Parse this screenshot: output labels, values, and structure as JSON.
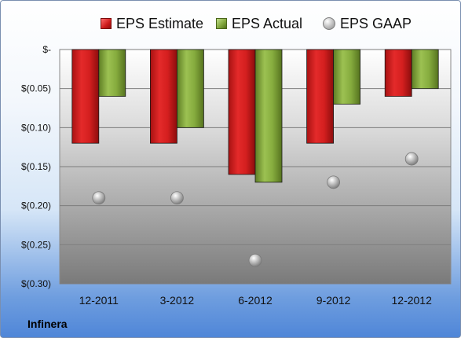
{
  "company": "Infinera",
  "legend": {
    "estimate": "EPS Estimate",
    "actual": "EPS Actual",
    "gaap": "EPS GAAP"
  },
  "colors": {
    "estimate": "#d42020",
    "actual": "#86ac3e",
    "gaap": "#b5b5b5"
  },
  "chart_data": {
    "type": "bar",
    "categories": [
      "12-2011",
      "3-2012",
      "6-2012",
      "9-2012",
      "12-2012"
    ],
    "series": [
      {
        "name": "EPS Estimate",
        "type": "bar",
        "values": [
          -0.12,
          -0.12,
          -0.16,
          -0.12,
          -0.06
        ]
      },
      {
        "name": "EPS Actual",
        "type": "bar",
        "values": [
          -0.06,
          -0.1,
          -0.17,
          -0.07,
          -0.05
        ]
      },
      {
        "name": "EPS GAAP",
        "type": "scatter",
        "values": [
          -0.19,
          -0.19,
          -0.27,
          -0.17,
          -0.14
        ]
      }
    ],
    "ylim": [
      -0.3,
      0
    ],
    "yticks": [
      0,
      -0.05,
      -0.1,
      -0.15,
      -0.2,
      -0.25,
      -0.3
    ],
    "ytick_labels": [
      "$-",
      "$(0.05)",
      "$(0.10)",
      "$(0.15)",
      "$(0.20)",
      "$(0.25)",
      "$(0.30)"
    ],
    "grid": true,
    "legend_position": "top"
  }
}
